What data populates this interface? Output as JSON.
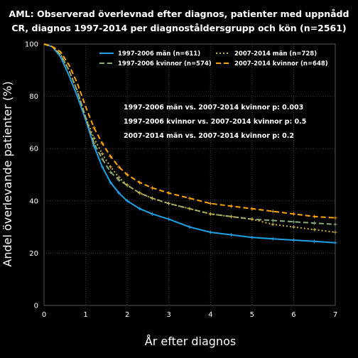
{
  "chart_data": {
    "type": "line",
    "title_lines": [
      "AML: Observerad överlevnad efter diagnos, patienter med uppnådd",
      "CR, diagnos 1997-2014 per diagnoståldersgrupp och kön (n=2561)"
    ],
    "xlabel": "År efter diagnos",
    "ylabel": "Andel överlevande patienter (%)",
    "xlim": [
      0,
      7
    ],
    "ylim": [
      0,
      100
    ],
    "xticks": [
      "0",
      "1",
      "2",
      "3",
      "4",
      "5",
      "6",
      "7"
    ],
    "yticks": [
      "0",
      "20",
      "40",
      "60",
      "80",
      "100"
    ],
    "grid": true,
    "legend_position": "top",
    "colors": {
      "background": "#000000",
      "grid": "#3a3a3a",
      "men_1997_2006": "#1ea0e6",
      "women_1997_2006": "#8aab7a",
      "men_2007_2014": "#c8b040",
      "women_2007_2014": "#ffa500"
    },
    "series": [
      {
        "name": "1997-2006 män (n=611)",
        "style": "solid",
        "color": "#1ea0e6",
        "x": [
          0,
          0.2,
          0.4,
          0.6,
          0.8,
          1.0,
          1.2,
          1.4,
          1.6,
          1.8,
          2.0,
          2.3,
          2.6,
          3.0,
          3.5,
          4.0,
          4.5,
          5.0,
          5.5,
          6.0,
          6.5,
          7.0
        ],
        "y": [
          100,
          99,
          95,
          88,
          80,
          71,
          61,
          53,
          47,
          43,
          40,
          37,
          35,
          33,
          30,
          28,
          27,
          26,
          25.5,
          25,
          24.5,
          24
        ]
      },
      {
        "name": "1997-2006 kvinnor (n=574)",
        "style": "dashed",
        "color": "#8aab7a",
        "x": [
          0,
          0.2,
          0.4,
          0.6,
          0.8,
          1.0,
          1.2,
          1.4,
          1.6,
          1.8,
          2.0,
          2.3,
          2.6,
          3.0,
          3.5,
          4.0,
          4.5,
          5.0,
          5.5,
          6.0,
          6.5,
          7.0
        ],
        "y": [
          100,
          99,
          96,
          90,
          82,
          72,
          62,
          56,
          51,
          48,
          46,
          43,
          41,
          39,
          37,
          35,
          34,
          33,
          32.5,
          32,
          31.5,
          31
        ]
      },
      {
        "name": "2007-2014 män (n=728)",
        "style": "dotted",
        "color": "#c8b040",
        "x": [
          0,
          0.2,
          0.4,
          0.6,
          0.8,
          1.0,
          1.2,
          1.4,
          1.6,
          1.8,
          2.0,
          2.3,
          2.6,
          3.0,
          3.5,
          4.0,
          4.5,
          5.0,
          5.5,
          6.0,
          6.5,
          7.0
        ],
        "y": [
          100,
          99,
          96,
          90,
          82,
          72,
          64,
          58,
          53,
          49,
          46,
          43,
          41,
          39,
          37,
          35,
          34,
          33,
          31,
          30,
          29,
          28
        ]
      },
      {
        "name": "2007-2014 kvinnor (n=648)",
        "style": "dashed",
        "color": "#ffa500",
        "x": [
          0,
          0.2,
          0.4,
          0.6,
          0.8,
          1.0,
          1.2,
          1.4,
          1.6,
          1.8,
          2.0,
          2.3,
          2.6,
          3.0,
          3.5,
          4.0,
          4.5,
          5.0,
          5.5,
          6.0,
          6.5,
          7.0
        ],
        "y": [
          100,
          99,
          97,
          92,
          85,
          76,
          68,
          62,
          57,
          53,
          50,
          47,
          45,
          43,
          41,
          39,
          38,
          37,
          36,
          35,
          34,
          33.5
        ]
      }
    ],
    "annotations": [
      "1997-2006 män vs. 2007-2014 kvinnor p: 0.003",
      "1997-2006 kvinnor vs. 2007-2014 kvinnor p: 0.5",
      "2007-2014 män vs. 2007-2014 kvinnor p: 0.2"
    ]
  }
}
